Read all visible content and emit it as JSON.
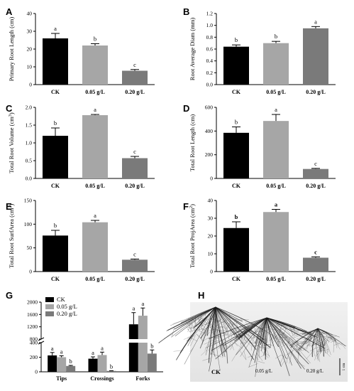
{
  "colors": {
    "ck": "#000000",
    "low": "#a6a6a6",
    "high": "#7a7a7a"
  },
  "chart_data": [
    {
      "panel": "A",
      "type": "bar",
      "categories": [
        "CK",
        "0.05 g/L",
        "0.20 g/L"
      ],
      "values": [
        26,
        22,
        7.8
      ],
      "errors": [
        2.8,
        1.0,
        0.7
      ],
      "letters": [
        "a",
        "b",
        "c"
      ],
      "bold_letters": false,
      "ylabel": "Primary Root Length (cm)",
      "ylabel_sup": "",
      "ylim": [
        0,
        40
      ],
      "yticks": [
        0,
        10,
        20,
        30,
        40
      ]
    },
    {
      "panel": "B",
      "type": "bar",
      "categories": [
        "CK",
        "0.05 g/L",
        "0.20 g/L"
      ],
      "values": [
        0.64,
        0.7,
        0.95
      ],
      "errors": [
        0.03,
        0.03,
        0.03
      ],
      "letters": [
        "b",
        "b",
        "a"
      ],
      "bold_letters": false,
      "ylabel": "Root Average Diam (mm)",
      "ylabel_sup": "",
      "ylim": [
        0,
        1.2
      ],
      "yticks": [
        0.0,
        0.2,
        0.4,
        0.6,
        0.8,
        1.0,
        1.2
      ]
    },
    {
      "panel": "C",
      "type": "bar",
      "categories": [
        "CK",
        "0.05 g/L",
        "0.20 g/L"
      ],
      "values": [
        1.2,
        1.78,
        0.57
      ],
      "errors": [
        0.22,
        0.02,
        0.05
      ],
      "letters": [
        "b",
        "a",
        "c"
      ],
      "bold_letters": false,
      "ylabel": "Total Root Volume (cm",
      "ylabel_sup": "3",
      "ylim": [
        0,
        2.0
      ],
      "yticks": [
        0.0,
        0.5,
        1.0,
        1.5,
        2.0
      ]
    },
    {
      "panel": "D",
      "type": "bar",
      "categories": [
        "CK",
        "0.05 g/L",
        "0.20 g/L"
      ],
      "values": [
        385,
        485,
        80
      ],
      "errors": [
        50,
        55,
        5
      ],
      "letters": [
        "b",
        "a",
        "c"
      ],
      "bold_letters": false,
      "ylabel": "Total Root Length (cm)",
      "ylabel_sup": "",
      "ylim": [
        0,
        600
      ],
      "yticks": [
        0,
        200,
        400,
        600
      ]
    },
    {
      "panel": "E",
      "type": "bar",
      "categories": [
        "CK",
        "0.05 g/L",
        "0.20 g/L"
      ],
      "values": [
        76,
        104,
        25
      ],
      "errors": [
        11,
        4,
        1.5
      ],
      "letters": [
        "b",
        "a",
        "c"
      ],
      "bold_letters": false,
      "ylabel": "Total Root SurfArea (cm",
      "ylabel_sup": "2",
      "ylim": [
        0,
        150
      ],
      "yticks": [
        0,
        50,
        100,
        150
      ]
    },
    {
      "panel": "F",
      "type": "bar",
      "categories": [
        "CK",
        "0.05 g/L",
        "0.20 g/L"
      ],
      "values": [
        24.5,
        33.5,
        7.8
      ],
      "errors": [
        3.5,
        1.5,
        0.5
      ],
      "letters": [
        "b",
        "a",
        "c"
      ],
      "bold_letters": true,
      "ylabel": "Total Root ProjArea (cm",
      "ylabel_sup": "2",
      "ylim": [
        0,
        40
      ],
      "yticks": [
        0,
        10,
        20,
        30,
        40
      ]
    },
    {
      "panel": "G",
      "type": "bar",
      "categories": [
        "Tips",
        "Crossings",
        "Forks"
      ],
      "series": [
        {
          "name": "CK",
          "values": [
            225,
            180,
            1280
          ],
          "errors": [
            40,
            25,
            380
          ],
          "letters": [
            "a",
            "a",
            "a"
          ]
        },
        {
          "name": "0.05 g/L",
          "values": [
            200,
            230,
            1560
          ],
          "errors": [
            20,
            40,
            250
          ],
          "letters": [
            "a",
            "a",
            "a"
          ]
        },
        {
          "name": "0.20 g/L",
          "values": [
            80,
            12,
            250
          ],
          "errors": [
            8,
            3,
            50
          ],
          "letters": [
            "b",
            "b",
            "b"
          ]
        }
      ],
      "ylabel": "",
      "ylabel_sup": "",
      "ylim": [
        0,
        2000
      ],
      "axis_break": [
        400,
        800
      ],
      "yticks": [
        0,
        200,
        400,
        800,
        1200,
        1600,
        2000
      ]
    }
  ],
  "photo": {
    "panel": "H",
    "labels": [
      "CK",
      "0.05 g/L",
      "0.20 g/L"
    ],
    "scale_label": "1 cm"
  }
}
